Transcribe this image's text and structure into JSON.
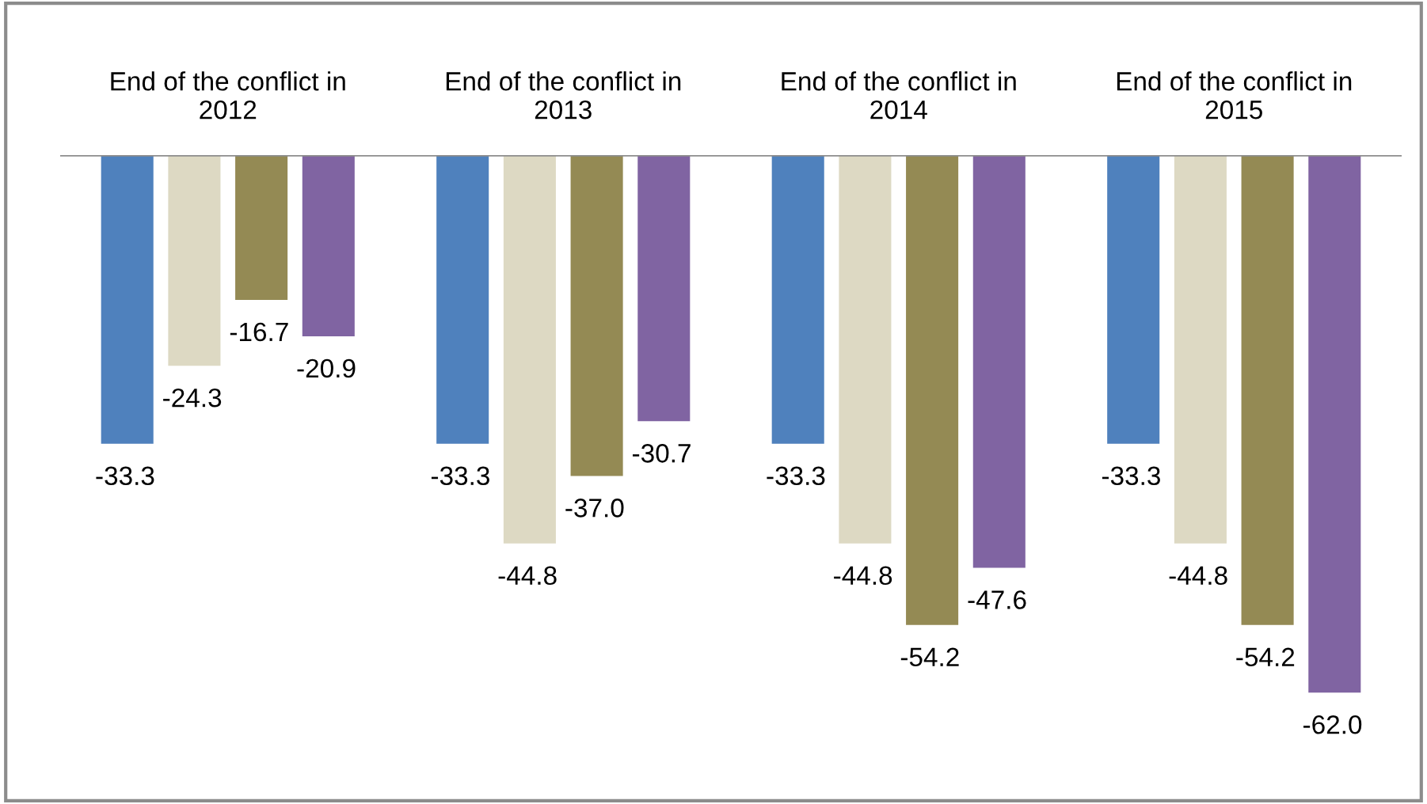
{
  "chart_data": {
    "type": "bar",
    "categories": [
      "End of the conflict in 2012",
      "End of the conflict in 2013",
      "End of the conflict in 2014",
      "End of the conflict in 2015"
    ],
    "series": [
      {
        "color": "#4f81bd",
        "values": [
          -33.3,
          -33.3,
          -33.3,
          -33.3
        ],
        "value_labels": [
          "-33.3",
          "-33.3",
          "-33.3",
          "-33.3"
        ]
      },
      {
        "color": "#ddd9c3",
        "values": [
          -24.3,
          -44.8,
          -44.8,
          -44.8
        ],
        "value_labels": [
          "-24.3",
          "-44.8",
          "-44.8",
          "-44.8"
        ]
      },
      {
        "color": "#948a54",
        "values": [
          -16.7,
          -37.0,
          -54.2,
          -54.2
        ],
        "value_labels": [
          "-16.7",
          "-37.0",
          "-54.2",
          "-54.2"
        ]
      },
      {
        "color": "#8064a2",
        "values": [
          -20.9,
          -30.7,
          -47.6,
          -62.0
        ],
        "value_labels": [
          "-20.9",
          "-30.7",
          "-47.6",
          "-62.0"
        ]
      }
    ]
  }
}
